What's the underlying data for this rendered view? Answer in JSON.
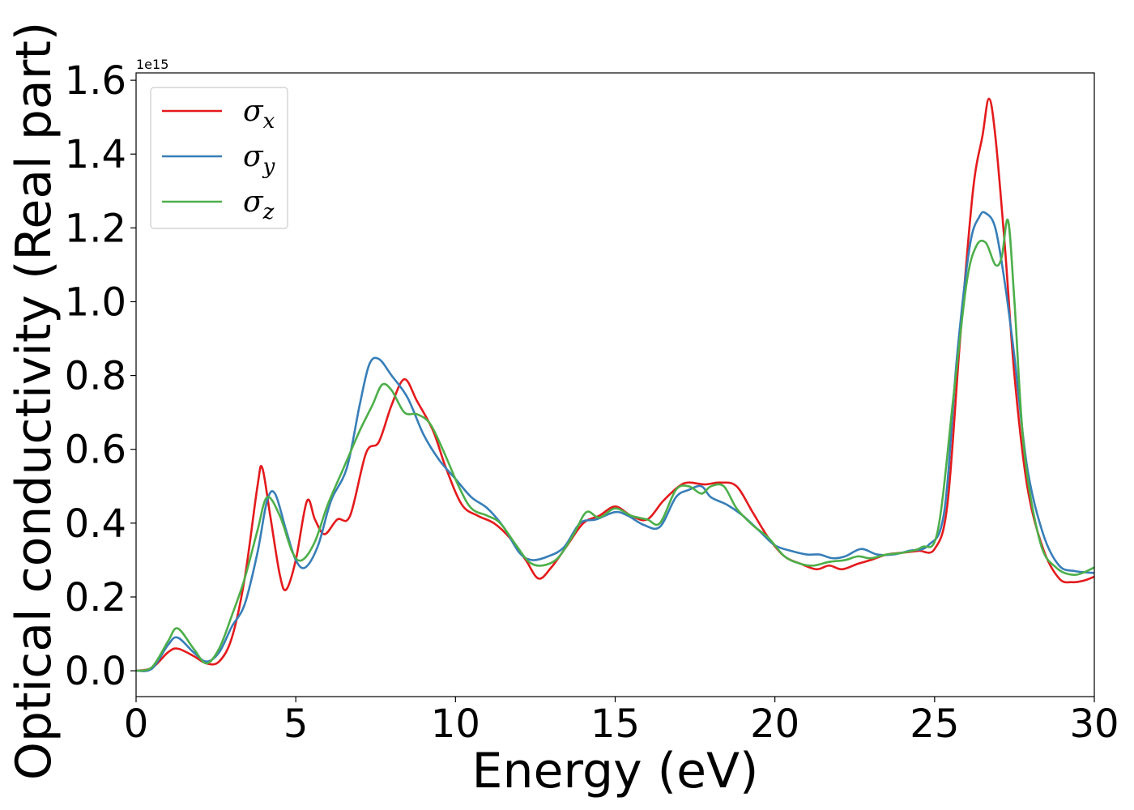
{
  "chart_data": {
    "type": "line",
    "xlabel": "Energy (eV)",
    "ylabel": "Optical conductivity (Real part)",
    "y_offset_text": "1e15",
    "xlim": [
      0,
      30
    ],
    "ylim": [
      -0.07,
      1.62
    ],
    "x_ticks": [
      0,
      5,
      10,
      15,
      20,
      25,
      30
    ],
    "y_ticks": [
      0.0,
      0.2,
      0.4,
      0.6,
      0.8,
      1.0,
      1.2,
      1.4,
      1.6
    ],
    "x_tick_labels": [
      "0",
      "5",
      "10",
      "15",
      "20",
      "25",
      "30"
    ],
    "y_tick_labels": [
      "0.0",
      "0.2",
      "0.4",
      "0.6",
      "0.8",
      "1.0",
      "1.2",
      "1.4",
      "1.6"
    ],
    "grid": false,
    "legend_position": "upper-left",
    "series": [
      {
        "name": "σx",
        "symbol": "σ",
        "subscript": "x",
        "color": "#e41a1c",
        "points": [
          [
            0,
            0
          ],
          [
            0.5,
            0.008
          ],
          [
            1.0,
            0.05
          ],
          [
            1.3,
            0.06
          ],
          [
            1.8,
            0.04
          ],
          [
            2.2,
            0.02
          ],
          [
            2.6,
            0.025
          ],
          [
            3.0,
            0.09
          ],
          [
            3.4,
            0.25
          ],
          [
            3.8,
            0.5
          ],
          [
            3.95,
            0.55
          ],
          [
            4.2,
            0.42
          ],
          [
            4.5,
            0.26
          ],
          [
            4.7,
            0.22
          ],
          [
            5.0,
            0.3
          ],
          [
            5.35,
            0.46
          ],
          [
            5.6,
            0.41
          ],
          [
            5.9,
            0.37
          ],
          [
            6.3,
            0.41
          ],
          [
            6.7,
            0.42
          ],
          [
            7.2,
            0.59
          ],
          [
            7.6,
            0.62
          ],
          [
            8.0,
            0.72
          ],
          [
            8.4,
            0.79
          ],
          [
            8.8,
            0.73
          ],
          [
            9.3,
            0.65
          ],
          [
            9.7,
            0.55
          ],
          [
            10.2,
            0.45
          ],
          [
            10.7,
            0.42
          ],
          [
            11.2,
            0.4
          ],
          [
            11.7,
            0.36
          ],
          [
            12.2,
            0.3
          ],
          [
            12.6,
            0.25
          ],
          [
            13.0,
            0.28
          ],
          [
            13.5,
            0.34
          ],
          [
            14.0,
            0.4
          ],
          [
            14.5,
            0.42
          ],
          [
            15.0,
            0.445
          ],
          [
            15.5,
            0.42
          ],
          [
            16.0,
            0.41
          ],
          [
            16.5,
            0.46
          ],
          [
            17.0,
            0.5
          ],
          [
            17.3,
            0.51
          ],
          [
            17.8,
            0.505
          ],
          [
            18.3,
            0.51
          ],
          [
            18.8,
            0.5
          ],
          [
            19.3,
            0.43
          ],
          [
            19.8,
            0.36
          ],
          [
            20.3,
            0.31
          ],
          [
            20.8,
            0.29
          ],
          [
            21.3,
            0.275
          ],
          [
            21.7,
            0.285
          ],
          [
            22.1,
            0.275
          ],
          [
            22.6,
            0.29
          ],
          [
            23.0,
            0.3
          ],
          [
            23.5,
            0.315
          ],
          [
            24.0,
            0.32
          ],
          [
            24.5,
            0.325
          ],
          [
            25.0,
            0.33
          ],
          [
            25.4,
            0.45
          ],
          [
            25.8,
            0.9
          ],
          [
            26.2,
            1.3
          ],
          [
            26.5,
            1.45
          ],
          [
            26.7,
            1.55
          ],
          [
            26.9,
            1.45
          ],
          [
            27.2,
            1.15
          ],
          [
            27.5,
            0.8
          ],
          [
            27.9,
            0.5
          ],
          [
            28.4,
            0.33
          ],
          [
            28.9,
            0.25
          ],
          [
            29.3,
            0.24
          ],
          [
            29.7,
            0.245
          ],
          [
            30,
            0.255
          ]
        ]
      },
      {
        "name": "σy",
        "symbol": "σ",
        "subscript": "y",
        "color": "#377eb8",
        "points": [
          [
            0,
            0
          ],
          [
            0.5,
            0.006
          ],
          [
            1.0,
            0.07
          ],
          [
            1.3,
            0.09
          ],
          [
            1.8,
            0.05
          ],
          [
            2.2,
            0.025
          ],
          [
            2.6,
            0.05
          ],
          [
            3.0,
            0.12
          ],
          [
            3.4,
            0.18
          ],
          [
            3.8,
            0.32
          ],
          [
            4.1,
            0.46
          ],
          [
            4.35,
            0.48
          ],
          [
            4.7,
            0.38
          ],
          [
            5.0,
            0.3
          ],
          [
            5.3,
            0.28
          ],
          [
            5.7,
            0.34
          ],
          [
            6.1,
            0.46
          ],
          [
            6.6,
            0.55
          ],
          [
            7.0,
            0.72
          ],
          [
            7.3,
            0.83
          ],
          [
            7.6,
            0.845
          ],
          [
            8.0,
            0.8
          ],
          [
            8.5,
            0.74
          ],
          [
            9.0,
            0.64
          ],
          [
            9.5,
            0.57
          ],
          [
            10.0,
            0.52
          ],
          [
            10.5,
            0.47
          ],
          [
            11.0,
            0.44
          ],
          [
            11.5,
            0.39
          ],
          [
            12.0,
            0.32
          ],
          [
            12.4,
            0.3
          ],
          [
            12.9,
            0.31
          ],
          [
            13.4,
            0.335
          ],
          [
            13.9,
            0.4
          ],
          [
            14.4,
            0.41
          ],
          [
            15.0,
            0.43
          ],
          [
            15.4,
            0.42
          ],
          [
            15.9,
            0.395
          ],
          [
            16.4,
            0.39
          ],
          [
            16.9,
            0.47
          ],
          [
            17.3,
            0.49
          ],
          [
            17.7,
            0.5
          ],
          [
            18.0,
            0.47
          ],
          [
            18.5,
            0.45
          ],
          [
            19.0,
            0.42
          ],
          [
            19.5,
            0.38
          ],
          [
            20.0,
            0.34
          ],
          [
            20.5,
            0.325
          ],
          [
            21.0,
            0.315
          ],
          [
            21.4,
            0.315
          ],
          [
            21.8,
            0.305
          ],
          [
            22.2,
            0.31
          ],
          [
            22.7,
            0.33
          ],
          [
            23.2,
            0.315
          ],
          [
            23.7,
            0.315
          ],
          [
            24.2,
            0.325
          ],
          [
            24.8,
            0.34
          ],
          [
            25.3,
            0.43
          ],
          [
            25.7,
            0.85
          ],
          [
            26.1,
            1.15
          ],
          [
            26.4,
            1.23
          ],
          [
            26.6,
            1.24
          ],
          [
            26.9,
            1.2
          ],
          [
            27.2,
            1.05
          ],
          [
            27.5,
            0.85
          ],
          [
            27.9,
            0.55
          ],
          [
            28.4,
            0.37
          ],
          [
            28.9,
            0.285
          ],
          [
            29.4,
            0.27
          ],
          [
            30,
            0.265
          ]
        ]
      },
      {
        "name": "σz",
        "symbol": "σ",
        "subscript": "z",
        "color": "#4daf4a",
        "points": [
          [
            0,
            0
          ],
          [
            0.5,
            0.01
          ],
          [
            1.0,
            0.08
          ],
          [
            1.3,
            0.115
          ],
          [
            1.8,
            0.06
          ],
          [
            2.2,
            0.02
          ],
          [
            2.6,
            0.06
          ],
          [
            3.0,
            0.15
          ],
          [
            3.4,
            0.25
          ],
          [
            3.8,
            0.38
          ],
          [
            4.1,
            0.47
          ],
          [
            4.5,
            0.42
          ],
          [
            4.9,
            0.32
          ],
          [
            5.2,
            0.3
          ],
          [
            5.6,
            0.35
          ],
          [
            6.0,
            0.45
          ],
          [
            6.5,
            0.55
          ],
          [
            7.0,
            0.65
          ],
          [
            7.4,
            0.72
          ],
          [
            7.7,
            0.775
          ],
          [
            8.0,
            0.76
          ],
          [
            8.4,
            0.7
          ],
          [
            8.8,
            0.695
          ],
          [
            9.2,
            0.67
          ],
          [
            9.6,
            0.6
          ],
          [
            10.1,
            0.5
          ],
          [
            10.5,
            0.44
          ],
          [
            11.0,
            0.42
          ],
          [
            11.4,
            0.4
          ],
          [
            11.9,
            0.34
          ],
          [
            12.3,
            0.295
          ],
          [
            12.7,
            0.285
          ],
          [
            13.2,
            0.305
          ],
          [
            13.7,
            0.37
          ],
          [
            14.1,
            0.43
          ],
          [
            14.5,
            0.415
          ],
          [
            15.0,
            0.44
          ],
          [
            15.5,
            0.42
          ],
          [
            16.0,
            0.41
          ],
          [
            16.4,
            0.4
          ],
          [
            16.9,
            0.49
          ],
          [
            17.3,
            0.5
          ],
          [
            17.7,
            0.48
          ],
          [
            18.0,
            0.5
          ],
          [
            18.4,
            0.5
          ],
          [
            18.8,
            0.44
          ],
          [
            19.3,
            0.395
          ],
          [
            19.8,
            0.36
          ],
          [
            20.3,
            0.31
          ],
          [
            20.8,
            0.29
          ],
          [
            21.2,
            0.285
          ],
          [
            21.7,
            0.295
          ],
          [
            22.2,
            0.3
          ],
          [
            22.6,
            0.31
          ],
          [
            23.0,
            0.305
          ],
          [
            23.5,
            0.315
          ],
          [
            24.0,
            0.32
          ],
          [
            24.6,
            0.335
          ],
          [
            25.1,
            0.38
          ],
          [
            25.6,
            0.75
          ],
          [
            26.0,
            1.05
          ],
          [
            26.3,
            1.15
          ],
          [
            26.6,
            1.16
          ],
          [
            26.9,
            1.1
          ],
          [
            27.1,
            1.12
          ],
          [
            27.3,
            1.22
          ],
          [
            27.5,
            1.0
          ],
          [
            27.8,
            0.6
          ],
          [
            28.3,
            0.35
          ],
          [
            28.8,
            0.28
          ],
          [
            29.4,
            0.26
          ],
          [
            30,
            0.28
          ]
        ]
      }
    ]
  }
}
